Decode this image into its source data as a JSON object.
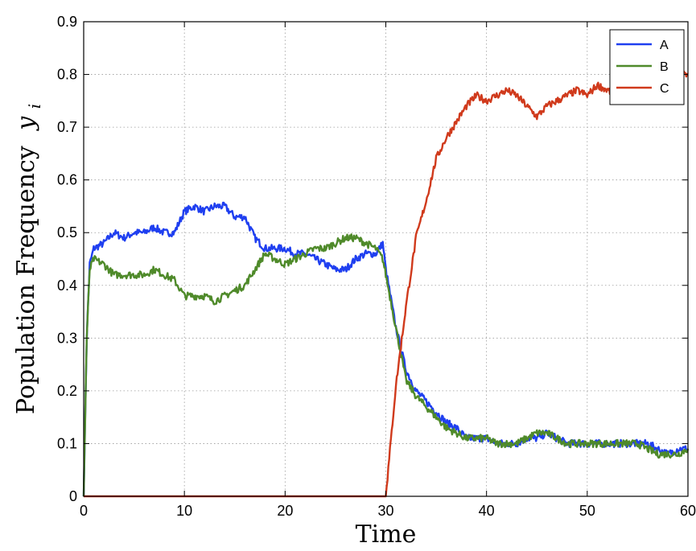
{
  "chart_data": {
    "type": "line",
    "xlabel": "Time",
    "ylabel": "Population Frequency",
    "ylabel_symbol": "y",
    "ylabel_subscript": "i",
    "xlim": [
      0,
      60
    ],
    "ylim": [
      0,
      0.9
    ],
    "xticks": [
      0,
      10,
      20,
      30,
      40,
      50,
      60
    ],
    "yticks": [
      0,
      0.1,
      0.2,
      0.3,
      0.4,
      0.5,
      0.6,
      0.7,
      0.8,
      0.9
    ],
    "xtick_labels": [
      "0",
      "10",
      "20",
      "30",
      "40",
      "50",
      "60"
    ],
    "ytick_labels": [
      "0",
      "0.1",
      "0.2",
      "0.3",
      "0.4",
      "0.5",
      "0.6",
      "0.7",
      "0.8",
      "0.9"
    ],
    "grid": true,
    "legend_position": "top-right",
    "series": [
      {
        "name": "A",
        "color": "#1f3ff0",
        "x": [
          0,
          0.3,
          0.6,
          1,
          2,
          3,
          4,
          5,
          6,
          7,
          8,
          9,
          10,
          11,
          12,
          13,
          14,
          15,
          16,
          17,
          18,
          19,
          20,
          21,
          22,
          23,
          24,
          25,
          26,
          27,
          28,
          29,
          29.7,
          30,
          31,
          32,
          33,
          34,
          35,
          36,
          37,
          38,
          39,
          40,
          41,
          42,
          43,
          44,
          45,
          46,
          47,
          48,
          49,
          50,
          51,
          52,
          53,
          54,
          55,
          56,
          57,
          58,
          59,
          60
        ],
        "y": [
          0.0,
          0.3,
          0.44,
          0.47,
          0.48,
          0.5,
          0.49,
          0.5,
          0.5,
          0.51,
          0.5,
          0.5,
          0.54,
          0.55,
          0.54,
          0.55,
          0.55,
          0.53,
          0.53,
          0.49,
          0.47,
          0.47,
          0.47,
          0.46,
          0.46,
          0.45,
          0.44,
          0.43,
          0.43,
          0.45,
          0.46,
          0.46,
          0.48,
          0.43,
          0.32,
          0.24,
          0.2,
          0.18,
          0.16,
          0.14,
          0.13,
          0.11,
          0.11,
          0.11,
          0.1,
          0.1,
          0.1,
          0.11,
          0.11,
          0.12,
          0.11,
          0.1,
          0.1,
          0.1,
          0.1,
          0.1,
          0.1,
          0.1,
          0.1,
          0.1,
          0.09,
          0.08,
          0.09,
          0.09
        ]
      },
      {
        "name": "B",
        "color": "#4f8a2a",
        "x": [
          0,
          0.3,
          0.6,
          1,
          2,
          3,
          4,
          5,
          6,
          7,
          8,
          9,
          10,
          11,
          12,
          13,
          14,
          15,
          16,
          17,
          18,
          19,
          20,
          21,
          22,
          23,
          24,
          25,
          26,
          27,
          28,
          29,
          29.7,
          30,
          31,
          32,
          33,
          34,
          35,
          36,
          37,
          38,
          39,
          40,
          41,
          42,
          43,
          44,
          45,
          46,
          47,
          48,
          49,
          50,
          51,
          52,
          53,
          54,
          55,
          56,
          57,
          58,
          59,
          60
        ],
        "y": [
          0.0,
          0.3,
          0.43,
          0.45,
          0.44,
          0.42,
          0.42,
          0.42,
          0.42,
          0.43,
          0.42,
          0.41,
          0.38,
          0.38,
          0.38,
          0.37,
          0.38,
          0.39,
          0.4,
          0.43,
          0.46,
          0.45,
          0.44,
          0.45,
          0.46,
          0.47,
          0.47,
          0.48,
          0.49,
          0.49,
          0.48,
          0.47,
          0.45,
          0.42,
          0.32,
          0.22,
          0.19,
          0.17,
          0.15,
          0.13,
          0.12,
          0.11,
          0.11,
          0.11,
          0.1,
          0.1,
          0.1,
          0.11,
          0.12,
          0.12,
          0.11,
          0.1,
          0.1,
          0.1,
          0.1,
          0.1,
          0.1,
          0.1,
          0.1,
          0.09,
          0.08,
          0.08,
          0.08,
          0.09
        ]
      },
      {
        "name": "C",
        "color": "#d03a1c",
        "x": [
          0,
          29.9,
          30,
          31,
          32,
          33,
          34,
          35,
          36,
          37,
          38,
          39,
          40,
          41,
          42,
          43,
          44,
          45,
          46,
          47,
          48,
          49,
          50,
          51,
          52,
          53,
          54,
          55,
          56,
          57,
          58,
          59,
          60
        ],
        "y": [
          0.0,
          0.0,
          0.0,
          0.21,
          0.36,
          0.49,
          0.56,
          0.64,
          0.68,
          0.71,
          0.74,
          0.76,
          0.75,
          0.76,
          0.77,
          0.76,
          0.74,
          0.72,
          0.74,
          0.75,
          0.76,
          0.77,
          0.76,
          0.78,
          0.77,
          0.76,
          0.75,
          0.78,
          0.77,
          0.8,
          0.79,
          0.8,
          0.8
        ]
      }
    ]
  }
}
